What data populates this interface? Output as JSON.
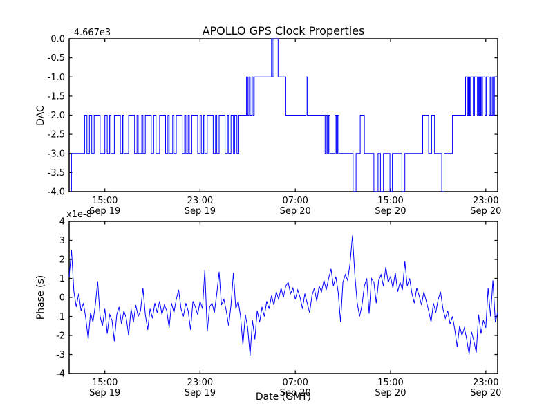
{
  "figure": {
    "background_color": "#ffffff",
    "line_color": "#0000ff",
    "axis_color": "#000000"
  },
  "chart_data": [
    {
      "type": "line",
      "subplot": "top",
      "title": "APOLLO GPS Clock Properties",
      "ylabel": "DAC",
      "y_offset_text": "-4.667e3",
      "ylim": [
        -4.0,
        0.0
      ],
      "ytick_values": [
        0,
        -0.5,
        -1,
        -1.5,
        -2,
        -2.5,
        -3,
        -3.5,
        -4
      ],
      "ytick_labels": [
        "0.0",
        "-0.5",
        "-1.0",
        "-1.5",
        "-2.0",
        "-2.5",
        "-3.0",
        "-3.5",
        "-4.0"
      ],
      "x_hours_range": [
        12.0,
        48.0
      ],
      "xticks": [
        {
          "hour": 15,
          "label": "15:00",
          "sublabel": "Sep 19"
        },
        {
          "hour": 23,
          "label": "23:00",
          "sublabel": "Sep 19"
        },
        {
          "hour": 31,
          "label": "07:00",
          "sublabel": "Sep 20"
        },
        {
          "hour": 39,
          "label": "15:00",
          "sublabel": "Sep 20"
        },
        {
          "hour": 47,
          "label": "23:00",
          "sublabel": "Sep 20"
        }
      ],
      "style": "steps",
      "legend": "none",
      "grid": false,
      "steps": [
        [
          12.17,
          -4
        ],
        [
          12.2,
          -3
        ],
        [
          13.3,
          -2
        ],
        [
          13.5,
          -3
        ],
        [
          13.7,
          -2
        ],
        [
          13.9,
          -3
        ],
        [
          14.1,
          -2
        ],
        [
          14.6,
          -3
        ],
        [
          15.0,
          -2
        ],
        [
          15.2,
          -3
        ],
        [
          15.4,
          -2
        ],
        [
          15.5,
          -3
        ],
        [
          15.8,
          -2
        ],
        [
          16.3,
          -3
        ],
        [
          16.5,
          -2
        ],
        [
          16.6,
          -3
        ],
        [
          17.0,
          -2
        ],
        [
          17.5,
          -3
        ],
        [
          17.7,
          -2
        ],
        [
          17.8,
          -3
        ],
        [
          18.1,
          -2
        ],
        [
          18.2,
          -3
        ],
        [
          18.4,
          -2
        ],
        [
          18.9,
          -3
        ],
        [
          19.1,
          -2
        ],
        [
          19.3,
          -3
        ],
        [
          19.6,
          -2
        ],
        [
          20.1,
          -3
        ],
        [
          20.3,
          -2
        ],
        [
          20.4,
          -3
        ],
        [
          20.7,
          -2
        ],
        [
          20.8,
          -3
        ],
        [
          21.0,
          -2
        ],
        [
          21.5,
          -3
        ],
        [
          21.7,
          -2
        ],
        [
          21.8,
          -3
        ],
        [
          22.0,
          -2
        ],
        [
          22.1,
          -3
        ],
        [
          22.3,
          -2
        ],
        [
          22.8,
          -3
        ],
        [
          23.0,
          -2
        ],
        [
          23.1,
          -3
        ],
        [
          23.3,
          -2
        ],
        [
          23.4,
          -3
        ],
        [
          23.6,
          -2
        ],
        [
          24.1,
          -3
        ],
        [
          24.3,
          -2
        ],
        [
          24.4,
          -3
        ],
        [
          24.6,
          -2
        ],
        [
          25.1,
          -3
        ],
        [
          25.3,
          -2
        ],
        [
          25.4,
          -3
        ],
        [
          25.6,
          -2
        ],
        [
          25.8,
          -3
        ],
        [
          25.9,
          -2
        ],
        [
          26.1,
          -3
        ],
        [
          26.25,
          -2
        ],
        [
          26.9,
          -1
        ],
        [
          27.0,
          -2
        ],
        [
          27.1,
          -1
        ],
        [
          27.2,
          -2
        ],
        [
          27.35,
          -1
        ],
        [
          27.45,
          -2
        ],
        [
          27.55,
          -1
        ],
        [
          29.0,
          0
        ],
        [
          29.07,
          -1
        ],
        [
          29.2,
          0
        ],
        [
          29.55,
          -1
        ],
        [
          30.2,
          -2
        ],
        [
          31.9,
          -1
        ],
        [
          32.0,
          -2
        ],
        [
          33.5,
          -3
        ],
        [
          33.6,
          -2
        ],
        [
          33.7,
          -3
        ],
        [
          33.8,
          -2
        ],
        [
          33.9,
          -3
        ],
        [
          34.35,
          -2
        ],
        [
          34.45,
          -3
        ],
        [
          34.55,
          -2
        ],
        [
          34.65,
          -3
        ],
        [
          35.85,
          -4
        ],
        [
          36.1,
          -3
        ],
        [
          36.45,
          -2
        ],
        [
          36.8,
          -3
        ],
        [
          37.6,
          -4
        ],
        [
          37.95,
          -3
        ],
        [
          38.15,
          -4
        ],
        [
          38.4,
          -3
        ],
        [
          38.95,
          -4
        ],
        [
          39.15,
          -3
        ],
        [
          39.95,
          -4
        ],
        [
          40.2,
          -3
        ],
        [
          41.7,
          -2
        ],
        [
          42.2,
          -3
        ],
        [
          42.45,
          -2
        ],
        [
          42.7,
          -3
        ],
        [
          43.3,
          -4
        ],
        [
          43.5,
          -3
        ],
        [
          44.2,
          -2
        ],
        [
          45.3,
          -1
        ],
        [
          45.42,
          -2
        ],
        [
          45.5,
          -1
        ],
        [
          45.55,
          -2
        ],
        [
          45.62,
          -1
        ],
        [
          45.68,
          -2
        ],
        [
          45.75,
          -1
        ],
        [
          45.95,
          -2
        ],
        [
          46.05,
          -1
        ],
        [
          46.3,
          -2
        ],
        [
          46.4,
          -1
        ],
        [
          46.47,
          -2
        ],
        [
          46.58,
          -1
        ],
        [
          46.65,
          -2
        ],
        [
          46.72,
          -1
        ],
        [
          46.95,
          -2
        ],
        [
          47.05,
          -1
        ],
        [
          47.3,
          -2
        ],
        [
          47.4,
          -1
        ],
        [
          47.47,
          -2
        ],
        [
          47.58,
          -1
        ],
        [
          47.65,
          -2
        ],
        [
          47.72,
          -1
        ]
      ],
      "x_end": 48.0
    },
    {
      "type": "line",
      "subplot": "bottom",
      "ylabel": "Phase (s)",
      "y_multiplier_text": "x1e-8",
      "xlabel": "Date (GMT)",
      "ylim": [
        -4,
        4
      ],
      "ytick_values": [
        4,
        3,
        2,
        1,
        0,
        -1,
        -2,
        -3,
        -4
      ],
      "ytick_labels": [
        "4",
        "3",
        "2",
        "1",
        "0",
        "-1",
        "-2",
        "-3",
        "-4"
      ],
      "x_hours_range": [
        12.0,
        48.0
      ],
      "xticks": [
        {
          "hour": 15,
          "label": "15:00",
          "sublabel": "Sep 19"
        },
        {
          "hour": 23,
          "label": "23:00",
          "sublabel": "Sep 19"
        },
        {
          "hour": 31,
          "label": "07:00",
          "sublabel": "Sep 20"
        },
        {
          "hour": 39,
          "label": "15:00",
          "sublabel": "Sep 20"
        },
        {
          "hour": 47,
          "label": "23:00",
          "sublabel": "Sep 20"
        }
      ],
      "style": "line",
      "legend": "none",
      "grid": false,
      "x_start": 12.0,
      "x_step": 0.2,
      "values": [
        1.1,
        2.5,
        0.3,
        -0.5,
        0.2,
        -0.7,
        -0.3,
        -1.1,
        -2.2,
        -0.8,
        -1.3,
        -0.4,
        0.85,
        -1.0,
        -1.5,
        -0.6,
        -1.9,
        -0.9,
        -1.2,
        -2.3,
        -0.9,
        -0.5,
        -1.4,
        -0.7,
        -1.1,
        -2.0,
        -0.6,
        -1.3,
        -0.4,
        -1.0,
        -0.7,
        0.5,
        -0.9,
        -1.7,
        -0.6,
        -1.1,
        -0.3,
        -0.8,
        -0.2,
        -0.9,
        -0.4,
        -0.7,
        -1.6,
        -0.3,
        -0.8,
        -0.1,
        0.4,
        -0.6,
        -1.0,
        -0.3,
        -0.7,
        -1.7,
        -0.2,
        -0.5,
        -0.9,
        -0.2,
        -0.6,
        1.45,
        -1.8,
        -0.5,
        -0.3,
        -0.8,
        0.2,
        1.35,
        -0.4,
        -0.1,
        -0.7,
        -1.5,
        -0.4,
        1.3,
        -0.6,
        -0.2,
        -1.0,
        -2.5,
        -0.9,
        -1.6,
        -3.05,
        -1.2,
        -2.2,
        -0.7,
        -1.3,
        -0.5,
        -1.0,
        -0.2,
        -0.6,
        0.1,
        -0.4,
        0.3,
        -0.1,
        0.5,
        0.0,
        0.6,
        0.8,
        0.2,
        0.5,
        -0.1,
        0.4,
        0.0,
        -0.6,
        0.2,
        -0.3,
        -0.8,
        0.1,
        0.5,
        -0.2,
        0.6,
        0.3,
        0.9,
        0.4,
        1.0,
        1.5,
        0.6,
        1.1,
        0.3,
        -1.3,
        0.8,
        1.2,
        0.9,
        1.8,
        3.25,
        1.2,
        -0.3,
        -1.0,
        -0.4,
        0.6,
        1.0,
        -0.85,
        1.0,
        0.8,
        -0.3,
        0.9,
        1.2,
        0.6,
        1.6,
        0.8,
        1.1,
        0.5,
        1.3,
        0.3,
        0.8,
        0.4,
        1.9,
        0.6,
        1.0,
        0.2,
        -0.3,
        0.5,
        0.1,
        -0.4,
        0.3,
        -0.2,
        -0.7,
        -1.3,
        -0.3,
        -0.8,
        -0.1,
        0.3,
        -0.6,
        -1.1,
        -0.7,
        -1.4,
        -1.0,
        -1.7,
        -2.6,
        -1.5,
        -2.0,
        -1.6,
        -2.2,
        -3.0,
        -1.8,
        -2.3,
        -2.9,
        -0.9,
        -1.9,
        -1.2,
        -1.6,
        0.5,
        -1.0,
        0.9,
        -1.3,
        -0.8
      ]
    }
  ]
}
